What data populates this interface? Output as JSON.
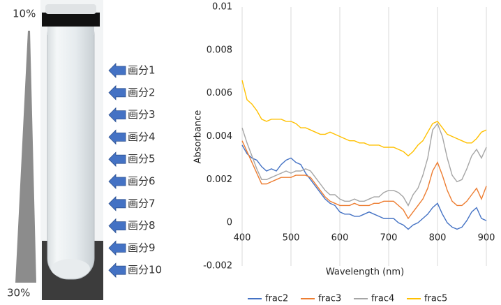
{
  "figure": {
    "gradient_top": "10%",
    "gradient_bottom": "30%",
    "fractions": [
      "画分1",
      "画分2",
      "画分3",
      "画分4",
      "画分5",
      "画分6",
      "画分7",
      "画分8",
      "画分9",
      "画分10"
    ]
  },
  "chart_data": {
    "type": "line",
    "xlabel": "Wavelength (nm)",
    "ylabel": "Absorbance",
    "x": [
      400,
      410,
      420,
      430,
      440,
      450,
      460,
      470,
      480,
      490,
      500,
      510,
      520,
      530,
      540,
      550,
      560,
      570,
      580,
      590,
      600,
      610,
      620,
      630,
      640,
      650,
      660,
      670,
      680,
      690,
      700,
      710,
      720,
      730,
      740,
      750,
      760,
      770,
      780,
      790,
      800,
      810,
      820,
      830,
      840,
      850,
      860,
      870,
      880,
      890,
      900
    ],
    "xlim": [
      400,
      900
    ],
    "xticks": [
      400,
      500,
      600,
      700,
      800,
      900
    ],
    "ylim": [
      -0.002,
      0.01
    ],
    "yticks": [
      -0.002,
      0,
      0.002,
      0.004,
      0.006,
      0.008,
      0.01
    ],
    "grid": true,
    "series": [
      {
        "name": "frac2",
        "color": "#4472c4",
        "values": [
          0.0036,
          0.0032,
          0.003,
          0.0029,
          0.0026,
          0.0024,
          0.0025,
          0.0024,
          0.0027,
          0.0029,
          0.003,
          0.0028,
          0.0027,
          0.0023,
          0.002,
          0.0017,
          0.0014,
          0.0011,
          0.0009,
          0.0008,
          0.0005,
          0.0004,
          0.0004,
          0.0003,
          0.0003,
          0.0004,
          0.0005,
          0.0004,
          0.0003,
          0.0002,
          0.0002,
          0.0002,
          0.0,
          -0.0001,
          -0.0003,
          -0.0001,
          0.0,
          0.0002,
          0.0004,
          0.0007,
          0.0009,
          0.0004,
          0.0,
          -0.0002,
          -0.0003,
          -0.0002,
          0.0001,
          0.0005,
          0.0007,
          0.0002,
          0.0001
        ]
      },
      {
        "name": "frac3",
        "color": "#ed7d31",
        "values": [
          0.0038,
          0.0033,
          0.0028,
          0.0023,
          0.0018,
          0.0018,
          0.0019,
          0.002,
          0.0021,
          0.0021,
          0.0021,
          0.0022,
          0.0022,
          0.0022,
          0.0021,
          0.0018,
          0.0015,
          0.0012,
          0.001,
          0.0009,
          0.0008,
          0.0008,
          0.0008,
          0.0009,
          0.0008,
          0.0008,
          0.0008,
          0.0009,
          0.0009,
          0.001,
          0.001,
          0.001,
          0.0008,
          0.0006,
          0.0002,
          0.0005,
          0.0008,
          0.0011,
          0.0016,
          0.0024,
          0.0028,
          0.0022,
          0.0015,
          0.001,
          0.0008,
          0.0008,
          0.001,
          0.0013,
          0.0016,
          0.0011,
          0.0017
        ]
      },
      {
        "name": "frac4",
        "color": "#a5a5a5",
        "values": [
          0.0044,
          0.0037,
          0.0031,
          0.0025,
          0.002,
          0.002,
          0.0021,
          0.0022,
          0.0023,
          0.0024,
          0.0023,
          0.0024,
          0.0024,
          0.0025,
          0.0024,
          0.0021,
          0.0018,
          0.0015,
          0.0013,
          0.0013,
          0.0011,
          0.001,
          0.001,
          0.0011,
          0.001,
          0.001,
          0.0011,
          0.0012,
          0.0012,
          0.0014,
          0.0015,
          0.0015,
          0.0014,
          0.0012,
          0.0008,
          0.0013,
          0.0016,
          0.0022,
          0.003,
          0.0043,
          0.0046,
          0.004,
          0.003,
          0.0022,
          0.0019,
          0.002,
          0.0025,
          0.0031,
          0.0034,
          0.003,
          0.0035
        ]
      },
      {
        "name": "frac5",
        "color": "#ffc000",
        "values": [
          0.0066,
          0.0057,
          0.0055,
          0.0052,
          0.0048,
          0.0047,
          0.0048,
          0.0048,
          0.0048,
          0.0047,
          0.0047,
          0.0046,
          0.0044,
          0.0044,
          0.0043,
          0.0042,
          0.0041,
          0.0041,
          0.0042,
          0.0041,
          0.004,
          0.0039,
          0.0038,
          0.0038,
          0.0037,
          0.0037,
          0.0036,
          0.0036,
          0.0036,
          0.0035,
          0.0035,
          0.0035,
          0.0034,
          0.0033,
          0.0031,
          0.0033,
          0.0036,
          0.0038,
          0.0042,
          0.0046,
          0.0047,
          0.0044,
          0.0041,
          0.004,
          0.0039,
          0.0038,
          0.0037,
          0.0037,
          0.0039,
          0.0042,
          0.0043
        ]
      }
    ]
  }
}
